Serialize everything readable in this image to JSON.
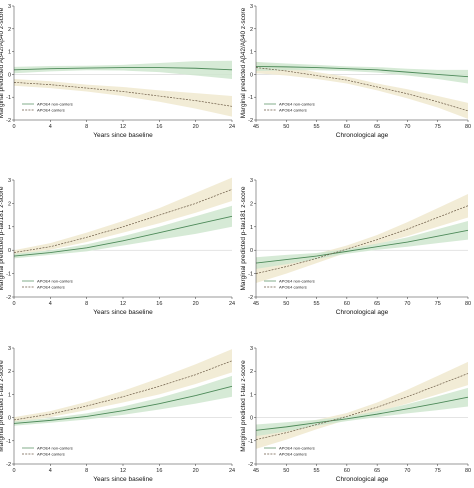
{
  "colors": {
    "non_carrier_line": "#4e8a5a",
    "non_carrier_band": "#cfe6cf",
    "carrier_line": "#6b5a45",
    "carrier_band": "#f1ead2",
    "axis": "#333333",
    "grid": "#bbbbbb"
  },
  "chart_data": [
    {
      "type": "line",
      "xlabel": "Years since baseline",
      "ylabel": "Marginal predicted Aβ42/Aβ40 z-score",
      "xticks": [
        0,
        4,
        8,
        12,
        16,
        20,
        24
      ],
      "yticks": [
        -2,
        -1,
        0,
        1,
        2,
        3
      ],
      "xlim": [
        0,
        24
      ],
      "ylim": [
        -2,
        3
      ],
      "legend": [
        "APOE4 non-carriers",
        "APOE4 carriers"
      ],
      "legend_position": "bottom-left",
      "series": [
        {
          "name": "APOE4 non-carriers",
          "x": [
            0,
            4,
            8,
            12,
            16,
            20,
            24
          ],
          "y": [
            0.2,
            0.25,
            0.28,
            0.3,
            0.3,
            0.27,
            0.2
          ],
          "lo": [
            0.05,
            0.13,
            0.18,
            0.17,
            0.1,
            -0.05,
            -0.2
          ],
          "hi": [
            0.33,
            0.37,
            0.38,
            0.42,
            0.5,
            0.58,
            0.6
          ]
        },
        {
          "name": "APOE4 carriers",
          "x": [
            0,
            4,
            8,
            12,
            16,
            20,
            24
          ],
          "y": [
            -0.35,
            -0.45,
            -0.6,
            -0.75,
            -0.95,
            -1.15,
            -1.4
          ],
          "lo": [
            -0.5,
            -0.6,
            -0.75,
            -0.95,
            -1.2,
            -1.5,
            -1.85
          ],
          "hi": [
            -0.2,
            -0.3,
            -0.45,
            -0.55,
            -0.7,
            -0.82,
            -0.95
          ]
        }
      ]
    },
    {
      "type": "line",
      "xlabel": "Chronological age",
      "ylabel": "Marginal predicted Aβ42/Aβ40 z-score",
      "xticks": [
        45,
        50,
        55,
        60,
        65,
        70,
        75,
        80
      ],
      "yticks": [
        -2,
        -1,
        0,
        1,
        2,
        3
      ],
      "xlim": [
        45,
        80
      ],
      "ylim": [
        -2,
        3
      ],
      "legend": [
        "APOE4 non-carriers",
        "APOE4 carriers"
      ],
      "legend_position": "bottom-left",
      "series": [
        {
          "name": "APOE4 non-carriers",
          "x": [
            45,
            50,
            55,
            60,
            65,
            70,
            75,
            80
          ],
          "y": [
            0.35,
            0.33,
            0.3,
            0.25,
            0.2,
            0.1,
            0.0,
            -0.1
          ],
          "lo": [
            0.15,
            0.18,
            0.18,
            0.15,
            0.08,
            -0.05,
            -0.2,
            -0.4
          ],
          "hi": [
            0.55,
            0.48,
            0.42,
            0.35,
            0.32,
            0.25,
            0.2,
            0.2
          ]
        },
        {
          "name": "APOE4 carriers",
          "x": [
            45,
            50,
            55,
            60,
            65,
            70,
            75,
            80
          ],
          "y": [
            0.3,
            0.15,
            -0.05,
            -0.25,
            -0.55,
            -0.85,
            -1.2,
            -1.6
          ],
          "lo": [
            0.05,
            -0.05,
            -0.2,
            -0.4,
            -0.7,
            -1.05,
            -1.45,
            -1.95
          ],
          "hi": [
            0.55,
            0.35,
            0.1,
            -0.1,
            -0.4,
            -0.65,
            -0.95,
            -1.25
          ]
        }
      ]
    },
    {
      "type": "line",
      "xlabel": "Years since baseline",
      "ylabel": "Marginal predicted p-tau181 z-score",
      "xticks": [
        0,
        4,
        8,
        12,
        16,
        20,
        24
      ],
      "yticks": [
        -2,
        -1,
        0,
        1,
        2,
        3
      ],
      "xlim": [
        0,
        24
      ],
      "ylim": [
        -2,
        3
      ],
      "legend": [
        "APOE4 non-carriers",
        "APOE4 carriers"
      ],
      "legend_position": "bottom-left",
      "series": [
        {
          "name": "APOE4 non-carriers",
          "x": [
            0,
            4,
            8,
            12,
            16,
            20,
            24
          ],
          "y": [
            -0.25,
            -0.1,
            0.1,
            0.4,
            0.75,
            1.1,
            1.45
          ],
          "lo": [
            -0.35,
            -0.2,
            -0.05,
            0.2,
            0.45,
            0.7,
            1.0
          ],
          "hi": [
            -0.15,
            0.0,
            0.25,
            0.6,
            1.0,
            1.45,
            1.9
          ]
        },
        {
          "name": "APOE4 carriers",
          "x": [
            0,
            4,
            8,
            12,
            16,
            20,
            24
          ],
          "y": [
            -0.1,
            0.15,
            0.55,
            1.0,
            1.5,
            2.0,
            2.6
          ],
          "lo": [
            -0.2,
            0.02,
            0.35,
            0.75,
            1.15,
            1.6,
            2.1
          ],
          "hi": [
            0.0,
            0.3,
            0.75,
            1.25,
            1.8,
            2.45,
            3.1
          ]
        }
      ]
    },
    {
      "type": "line",
      "xlabel": "Chronological age",
      "ylabel": "Marginal predicted p-tau181 z-score",
      "xticks": [
        45,
        50,
        55,
        60,
        65,
        70,
        75,
        80
      ],
      "yticks": [
        -2,
        -1,
        0,
        1,
        2,
        3
      ],
      "xlim": [
        45,
        80
      ],
      "ylim": [
        -2,
        3
      ],
      "legend": [
        "APOE4 non-carriers",
        "APOE4 carriers"
      ],
      "legend_position": "bottom-left",
      "series": [
        {
          "name": "APOE4 non-carriers",
          "x": [
            45,
            50,
            55,
            60,
            65,
            70,
            75,
            80
          ],
          "y": [
            -0.55,
            -0.4,
            -0.25,
            -0.05,
            0.15,
            0.35,
            0.6,
            0.85
          ],
          "lo": [
            -0.8,
            -0.6,
            -0.38,
            -0.15,
            0.02,
            0.15,
            0.3,
            0.45
          ],
          "hi": [
            -0.3,
            -0.2,
            -0.12,
            0.05,
            0.28,
            0.55,
            0.9,
            1.25
          ]
        },
        {
          "name": "APOE4 carriers",
          "x": [
            45,
            50,
            55,
            60,
            65,
            70,
            75,
            80
          ],
          "y": [
            -1.0,
            -0.7,
            -0.35,
            0.05,
            0.45,
            0.9,
            1.4,
            1.9
          ],
          "lo": [
            -1.4,
            -1.0,
            -0.55,
            -0.1,
            0.25,
            0.6,
            1.0,
            1.4
          ],
          "hi": [
            -0.6,
            -0.4,
            -0.15,
            0.2,
            0.65,
            1.2,
            1.8,
            2.4
          ]
        }
      ]
    },
    {
      "type": "line",
      "xlabel": "Years since baseline",
      "ylabel": "Marginal predicted t-tau z-score",
      "xticks": [
        0,
        4,
        8,
        12,
        16,
        20,
        24
      ],
      "yticks": [
        -2,
        -1,
        0,
        1,
        2,
        3
      ],
      "xlim": [
        0,
        24
      ],
      "ylim": [
        -2,
        3
      ],
      "legend": [
        "APOE4 non-carriers",
        "APOE4 carriers"
      ],
      "legend_position": "bottom-left",
      "series": [
        {
          "name": "APOE4 non-carriers",
          "x": [
            0,
            4,
            8,
            12,
            16,
            20,
            24
          ],
          "y": [
            -0.25,
            -0.12,
            0.05,
            0.3,
            0.6,
            0.95,
            1.35
          ],
          "lo": [
            -0.35,
            -0.22,
            -0.08,
            0.12,
            0.35,
            0.6,
            0.9
          ],
          "hi": [
            -0.15,
            -0.02,
            0.18,
            0.48,
            0.85,
            1.3,
            1.8
          ]
        },
        {
          "name": "APOE4 carriers",
          "x": [
            0,
            4,
            8,
            12,
            16,
            20,
            24
          ],
          "y": [
            -0.1,
            0.15,
            0.5,
            0.9,
            1.35,
            1.85,
            2.45
          ],
          "lo": [
            -0.22,
            0.02,
            0.32,
            0.65,
            1.0,
            1.45,
            1.95
          ],
          "hi": [
            0.02,
            0.28,
            0.68,
            1.15,
            1.7,
            2.3,
            2.95
          ]
        }
      ]
    },
    {
      "type": "line",
      "xlabel": "Chronological age",
      "ylabel": "Marginal predicted t-tau z-score",
      "xticks": [
        45,
        50,
        55,
        60,
        65,
        70,
        75,
        80
      ],
      "yticks": [
        -2,
        -1,
        0,
        1,
        2,
        3
      ],
      "xlim": [
        45,
        80
      ],
      "ylim": [
        -2,
        3
      ],
      "legend": [
        "APOE4 non-carriers",
        "APOE4 carriers"
      ],
      "legend_position": "bottom-left",
      "series": [
        {
          "name": "APOE4 non-carriers",
          "x": [
            45,
            50,
            55,
            60,
            65,
            70,
            75,
            80
          ],
          "y": [
            -0.55,
            -0.4,
            -0.22,
            -0.05,
            0.15,
            0.38,
            0.62,
            0.88
          ],
          "lo": [
            -0.8,
            -0.6,
            -0.35,
            -0.15,
            0.02,
            0.18,
            0.32,
            0.48
          ],
          "hi": [
            -0.3,
            -0.2,
            -0.1,
            0.05,
            0.28,
            0.58,
            0.92,
            1.28
          ]
        },
        {
          "name": "APOE4 carriers",
          "x": [
            45,
            50,
            55,
            60,
            65,
            70,
            75,
            80
          ],
          "y": [
            -0.95,
            -0.65,
            -0.3,
            0.05,
            0.45,
            0.9,
            1.4,
            1.9
          ],
          "lo": [
            -1.35,
            -0.95,
            -0.5,
            -0.1,
            0.25,
            0.6,
            1.0,
            1.4
          ],
          "hi": [
            -0.55,
            -0.35,
            -0.1,
            0.2,
            0.65,
            1.2,
            1.8,
            2.4
          ]
        }
      ]
    }
  ]
}
